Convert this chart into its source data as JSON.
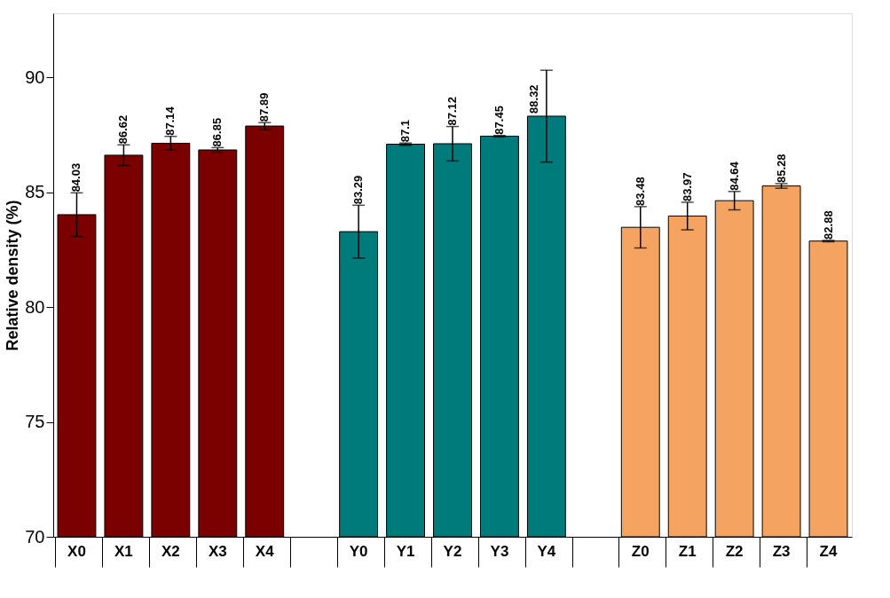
{
  "chart_data": {
    "type": "bar",
    "ylabel": "Relative density (%)",
    "categories": [
      "X0",
      "X1",
      "X2",
      "X3",
      "X4",
      null,
      "Y0",
      "Y1",
      "Y2",
      "Y3",
      "Y4",
      null,
      "Z0",
      "Z1",
      "Z2",
      "Z3",
      "Z4"
    ],
    "values": [
      84.03,
      86.62,
      87.14,
      86.85,
      87.89,
      null,
      83.29,
      87.1,
      87.12,
      87.45,
      88.32,
      null,
      83.48,
      83.97,
      84.64,
      85.28,
      82.88
    ],
    "errors": [
      0.95,
      0.45,
      0.3,
      0.1,
      0.15,
      null,
      1.15,
      0.05,
      0.75,
      0.03,
      2.0,
      null,
      0.9,
      0.6,
      0.4,
      0.1,
      0.03
    ],
    "colors": [
      "#7b0000",
      "#7b0000",
      "#7b0000",
      "#7b0000",
      "#7b0000",
      "#ffffff",
      "#007b7b",
      "#007b7b",
      "#007b7b",
      "#007b7b",
      "#007b7b",
      "#ffffff",
      "#f4a460",
      "#f4a460",
      "#f4a460",
      "#f4a460",
      "#f4a460"
    ],
    "ylim": [
      70,
      92.8
    ],
    "yticks": [
      70,
      75,
      80,
      85,
      90
    ],
    "data_labels": true,
    "grid": false
  }
}
